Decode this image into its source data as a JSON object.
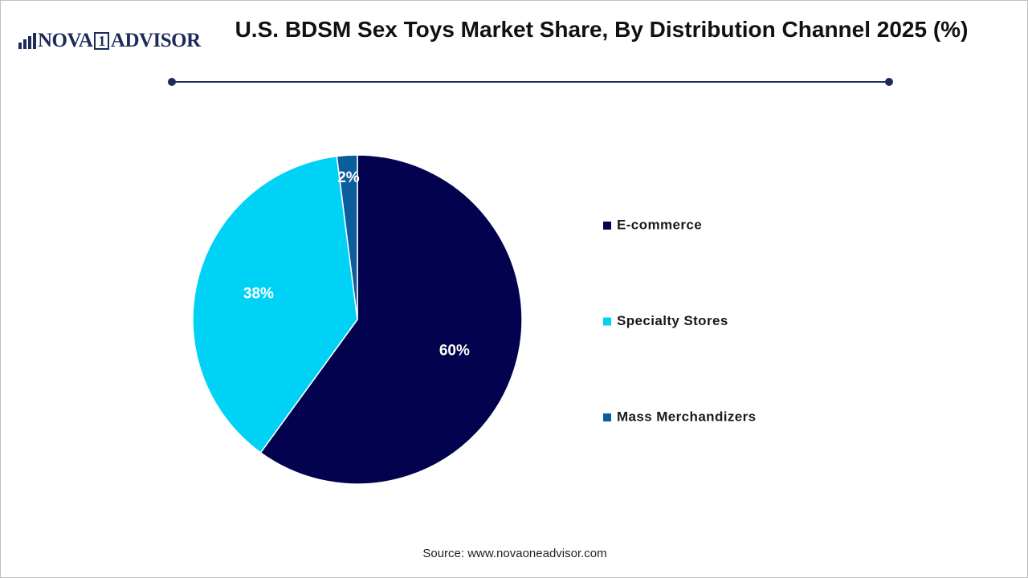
{
  "logo": [
    "NOVA",
    "1",
    "ADVISOR"
  ],
  "chart_data": {
    "type": "pie",
    "title": "U.S. BDSM Sex Toys Market Share, By Distribution Channel 2025 (%)",
    "categories": [
      "E-commerce",
      "Specialty Stores",
      "Mass Merchandizers"
    ],
    "values": [
      60,
      38,
      2
    ],
    "value_labels": [
      "60%",
      "38%",
      "2%"
    ],
    "colors": [
      "#02024e",
      "#00d2f6",
      "#0c5d9c"
    ],
    "source": "Source: www.novaoneadvisor.com"
  }
}
